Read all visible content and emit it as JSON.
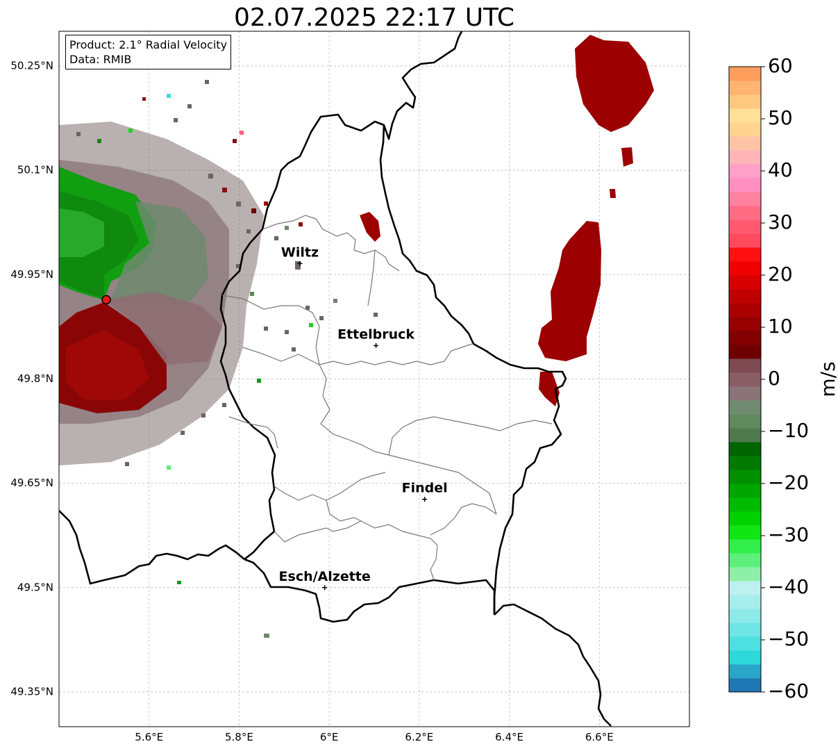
{
  "title": "02.07.2025 22:17 UTC",
  "info": {
    "product": "Product: 2.1° Radial Velocity",
    "data": "Data: RMIB"
  },
  "map": {
    "lon_range": [
      5.4,
      6.8
    ],
    "lat_range": [
      49.3,
      50.3
    ],
    "lat_ticks": [
      {
        "value": 50.25,
        "label": "50.25°N"
      },
      {
        "value": 50.1,
        "label": "50.1°N"
      },
      {
        "value": 49.95,
        "label": "49.95°N"
      },
      {
        "value": 49.8,
        "label": "49.8°N"
      },
      {
        "value": 49.65,
        "label": "49.65°N"
      },
      {
        "value": 49.5,
        "label": "49.5°N"
      },
      {
        "value": 49.35,
        "label": "49.35°N"
      }
    ],
    "lon_ticks": [
      {
        "value": 5.6,
        "label": "5.6°E"
      },
      {
        "value": 5.8,
        "label": "5.8°E"
      },
      {
        "value": 6.0,
        "label": "6°E"
      },
      {
        "value": 6.2,
        "label": "6.2°E"
      },
      {
        "value": 6.4,
        "label": "6.4°E"
      },
      {
        "value": 6.6,
        "label": "6.6°E"
      }
    ],
    "cities": [
      {
        "name": "Wiltz",
        "lon": 5.935,
        "lat": 49.966
      },
      {
        "name": "Ettelbruck",
        "lon": 6.104,
        "lat": 49.848
      },
      {
        "name": "Findel",
        "lon": 6.212,
        "lat": 49.627
      },
      {
        "name": "Esch/Alzette",
        "lon": 5.99,
        "lat": 49.5
      }
    ],
    "radar_site": {
      "lon": 5.505,
      "lat": 49.914
    },
    "grid": true
  },
  "colorbar": {
    "label": "m/s",
    "min": -60,
    "max": 60,
    "ticks": [
      {
        "value": 60,
        "label": "60"
      },
      {
        "value": 50,
        "label": "50"
      },
      {
        "value": 40,
        "label": "40"
      },
      {
        "value": 30,
        "label": "30"
      },
      {
        "value": 20,
        "label": "20"
      },
      {
        "value": 10,
        "label": "10"
      },
      {
        "value": 0,
        "label": "0"
      },
      {
        "value": -10,
        "label": "−10"
      },
      {
        "value": -20,
        "label": "−20"
      },
      {
        "value": -30,
        "label": "−30"
      },
      {
        "value": -40,
        "label": "−40"
      },
      {
        "value": -50,
        "label": "−50"
      },
      {
        "value": -60,
        "label": "−60"
      }
    ],
    "colors": [
      "#1f77b4",
      "#2aa6c9",
      "#2fd8d8",
      "#4ee0e0",
      "#6fe5e5",
      "#8ee9e9",
      "#a8eded",
      "#bff0f0",
      "#8ef0a8",
      "#5cf07a",
      "#32f04c",
      "#10e614",
      "#00d200",
      "#00bc00",
      "#00a600",
      "#009000",
      "#007a00",
      "#006400",
      "#4e7a4e",
      "#5e8a5e",
      "#708c70",
      "#8a7478",
      "#8a5e66",
      "#7e4a52",
      "#6e0000",
      "#820000",
      "#960000",
      "#aa0000",
      "#c00000",
      "#d80000",
      "#f00000",
      "#ff1010",
      "#ff4a5e",
      "#ff5a70",
      "#ff6c84",
      "#ff82a0",
      "#ff90c0",
      "#ffa0c8",
      "#ffb4b8",
      "#ffc4a8",
      "#ffd490",
      "#ffe098",
      "#ffc880",
      "#ffb470",
      "#ff9e5c"
    ]
  }
}
